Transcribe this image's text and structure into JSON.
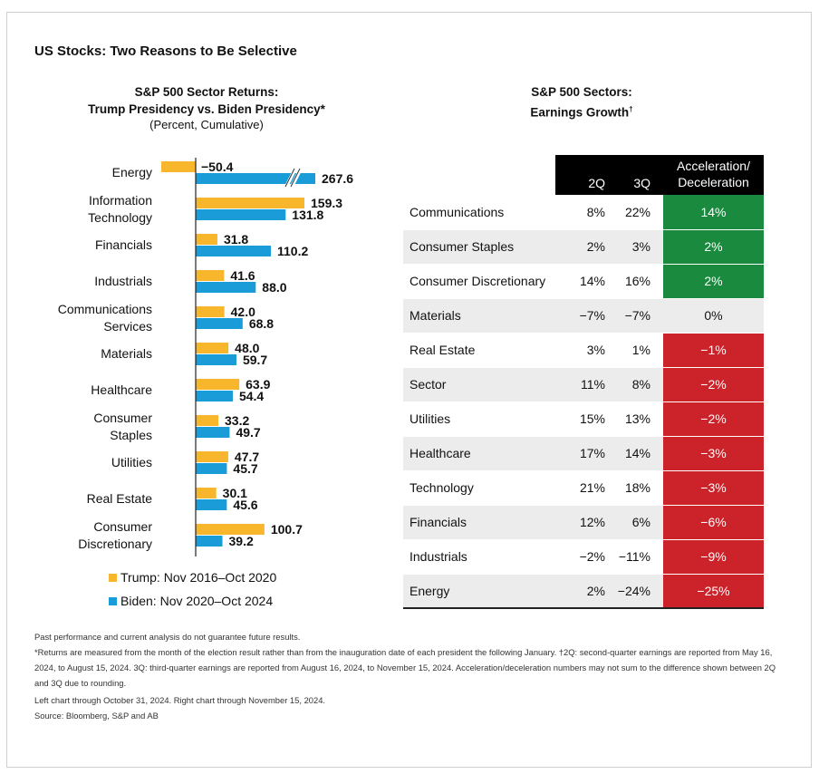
{
  "title": "US Stocks: Two Reasons to Be Selective",
  "left_chart": {
    "title_line1": "S&P 500 Sector Returns:",
    "title_line2": "Trump Presidency vs. Biden Presidency*",
    "subtitle": "(Percent, Cumulative)"
  },
  "right_chart": {
    "title_line1": "S&P 500 Sectors:",
    "title_line2": "Earnings Growth",
    "title_mark": "†",
    "headers": {
      "q2": "2Q",
      "q3": "3Q",
      "accel_line1": "Acceleration/",
      "accel_line2": "Deceleration"
    }
  },
  "legend": {
    "trump": "Trump: Nov 2016–Oct 2020",
    "biden": "Biden: Nov 2020–Oct 2024"
  },
  "colors": {
    "trump": "#f8b62d",
    "biden": "#1a9cd8",
    "positive": "#1a8a3e",
    "negative": "#cc2229"
  },
  "chart_data": [
    {
      "type": "bar",
      "orientation": "horizontal",
      "title": "S&P 500 Sector Returns: Trump Presidency vs. Biden Presidency*",
      "subtitle": "(Percent, Cumulative)",
      "categories": [
        [
          "Energy"
        ],
        [
          "Information",
          "Technology"
        ],
        [
          "Financials"
        ],
        [
          "Industrials"
        ],
        [
          "Communications",
          "Services"
        ],
        [
          "Materials"
        ],
        [
          "Healthcare"
        ],
        [
          "Consumer",
          "Staples"
        ],
        [
          "Utilities"
        ],
        [
          "Real Estate"
        ],
        [
          "Consumer",
          "Discretionary"
        ]
      ],
      "series": [
        {
          "name": "Trump: Nov 2016–Oct 2020",
          "values": [
            -50.4,
            159.3,
            31.8,
            41.6,
            42.0,
            48.0,
            63.9,
            33.2,
            47.7,
            30.1,
            100.7
          ],
          "labels": [
            "−50.4",
            "159.3",
            "31.8",
            "41.6",
            "42.0",
            "48.0",
            "63.9",
            "33.2",
            "47.7",
            "30.1",
            "100.7"
          ]
        },
        {
          "name": "Biden: Nov 2020–Oct 2024",
          "values": [
            267.6,
            131.8,
            110.2,
            88.0,
            68.8,
            59.7,
            54.4,
            49.7,
            45.7,
            45.6,
            39.2
          ],
          "labels": [
            "267.6",
            "131.8",
            "110.2",
            "88.0",
            "68.8",
            "59.7",
            "54.4",
            "49.7",
            "45.7",
            "45.6",
            "39.2"
          ]
        }
      ],
      "axis_break_on": "Energy (Biden)",
      "legend_position": "bottom",
      "grid": false
    },
    {
      "type": "table",
      "title": "S&P 500 Sectors: Earnings Growth†",
      "columns": [
        "",
        "2Q",
        "3Q",
        "Acceleration/Deceleration"
      ],
      "rows": [
        {
          "sector": "Communications",
          "q2": "8%",
          "q3": "22%",
          "accel": "14%",
          "sign": "pos"
        },
        {
          "sector": "Consumer Staples",
          "q2": "2%",
          "q3": "3%",
          "accel": "2%",
          "sign": "pos"
        },
        {
          "sector": "Consumer Discretionary",
          "q2": "14%",
          "q3": "16%",
          "accel": "2%",
          "sign": "pos"
        },
        {
          "sector": "Materials",
          "q2": "−7%",
          "q3": "−7%",
          "accel": "0%",
          "sign": "zero"
        },
        {
          "sector": "Real Estate",
          "q2": "3%",
          "q3": "1%",
          "accel": "−1%",
          "sign": "neg"
        },
        {
          "sector": "Sector",
          "q2": "11%",
          "q3": "8%",
          "accel": "−2%",
          "sign": "neg"
        },
        {
          "sector": "Utilities",
          "q2": "15%",
          "q3": "13%",
          "accel": "−2%",
          "sign": "neg"
        },
        {
          "sector": "Healthcare",
          "q2": "17%",
          "q3": "14%",
          "accel": "−3%",
          "sign": "neg"
        },
        {
          "sector": "Technology",
          "q2": "21%",
          "q3": "18%",
          "accel": "−3%",
          "sign": "neg"
        },
        {
          "sector": "Financials",
          "q2": "12%",
          "q3": "6%",
          "accel": "−6%",
          "sign": "neg"
        },
        {
          "sector": "Industrials",
          "q2": "−2%",
          "q3": "−11%",
          "accel": "−9%",
          "sign": "neg"
        },
        {
          "sector": "Energy",
          "q2": "2%",
          "q3": "−24%",
          "accel": "−25%",
          "sign": "neg"
        }
      ]
    }
  ],
  "footnotes": {
    "disclaimer": "Past performance and current analysis do not guarantee future results.",
    "note": "*Returns are measured from the month of the election result rather than from the inauguration date of each president the following January. †2Q: second-quarter earnings are reported from May 16, 2024, to August 15, 2024. 3Q: third-quarter earnings are reported from August 16, 2024, to November 15, 2024. Acceleration/deceleration numbers may not sum to the difference shown between 2Q and 3Q due to rounding.",
    "through": "Left chart through October 31, 2024. Right chart through November 15, 2024.",
    "source": "Source: Bloomberg, S&P and AB"
  }
}
